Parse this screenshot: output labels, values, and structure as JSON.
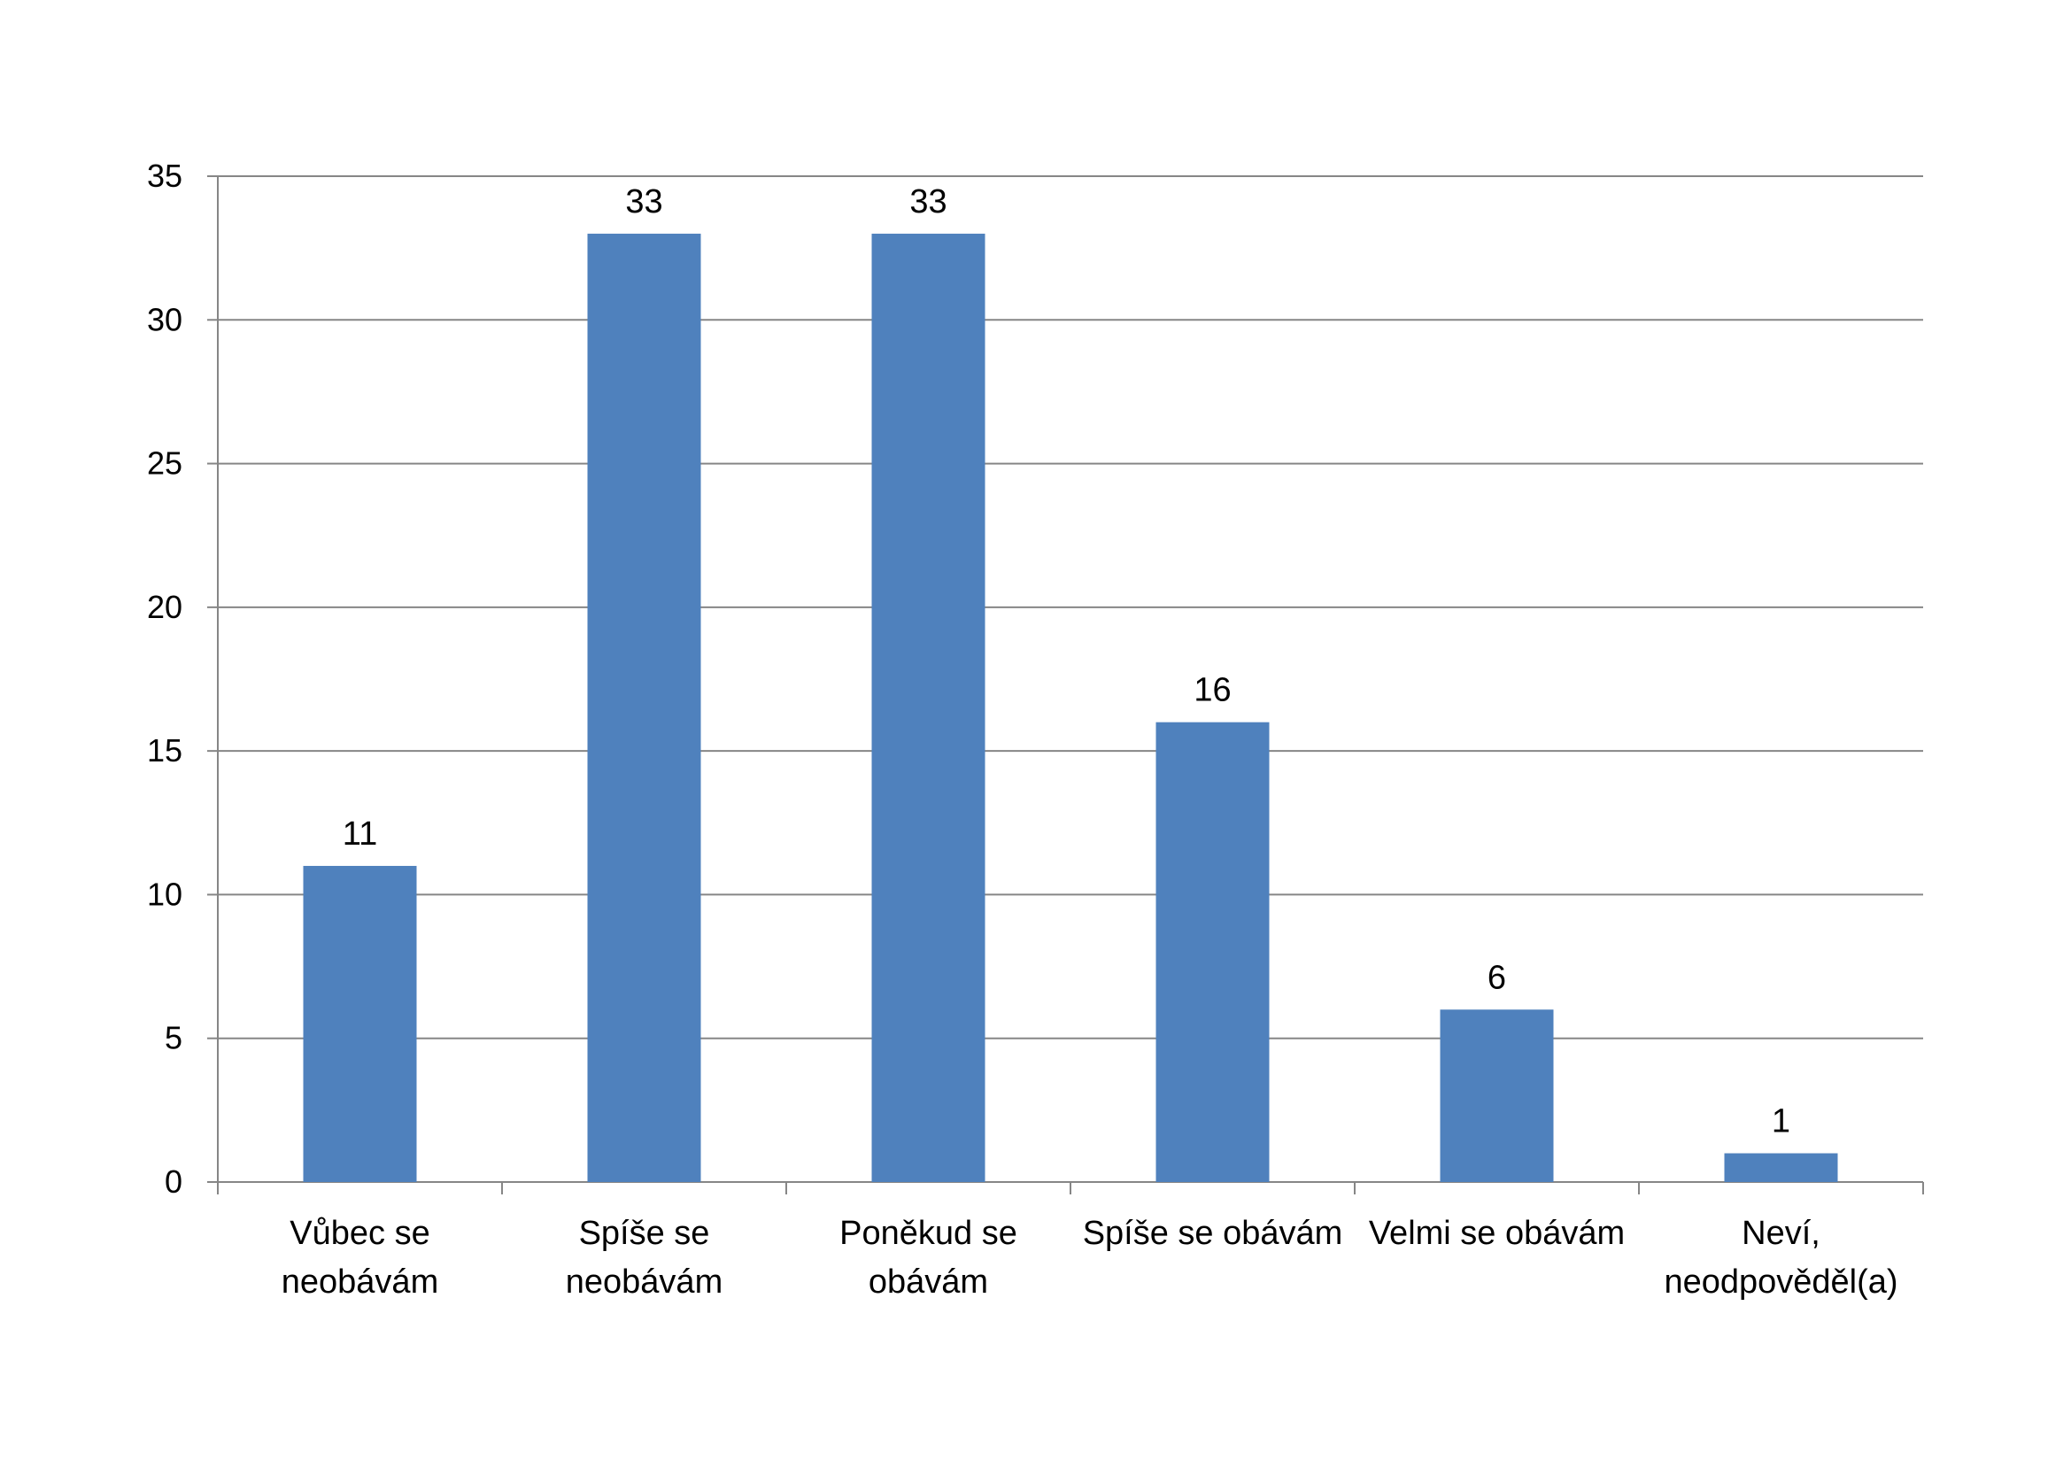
{
  "chart_data": {
    "type": "bar",
    "title": "",
    "xlabel": "",
    "ylabel": "",
    "categories": [
      [
        "Vůbec se",
        "neobávám"
      ],
      [
        "Spíše se",
        "neobávám"
      ],
      [
        "Poněkud se",
        "obávám"
      ],
      [
        "Spíše se obávám"
      ],
      [
        "Velmi se obávám"
      ],
      [
        "Neví,",
        "neodpověděl(a)"
      ]
    ],
    "values": [
      11,
      33,
      33,
      16,
      6,
      1
    ],
    "data_labels": [
      "11",
      "33",
      "33",
      "16",
      "6",
      "1"
    ],
    "ylim": [
      0,
      35
    ],
    "yticks": [
      0,
      5,
      10,
      15,
      20,
      25,
      30,
      35
    ],
    "grid": true,
    "legend": "none",
    "colors": {
      "bar": "#4F81BD",
      "grid": "#868686",
      "axis": "#868686"
    }
  }
}
